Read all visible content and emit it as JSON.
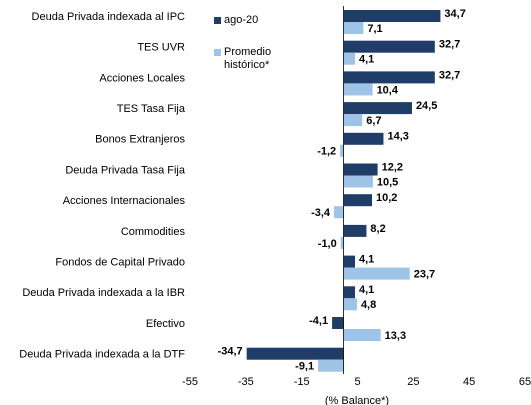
{
  "chart_data": {
    "type": "hbar",
    "categories": [
      "Deuda Privada indexada al IPC",
      "TES UVR",
      "Acciones Locales",
      "TES Tasa Fija",
      "Bonos Extranjeros",
      "Deuda Privada Tasa Fija",
      "Acciones Internacionales",
      "Commodities",
      "Fondos de Capital Privado",
      "Deuda Privada indexada a la IBR",
      "Efectivo",
      "Deuda Privada indexada a la DTF"
    ],
    "series": [
      {
        "name": "ago-20",
        "color": "#1f3d66",
        "values": [
          34.7,
          32.7,
          32.7,
          24.5,
          14.3,
          12.2,
          10.2,
          8.2,
          4.1,
          4.1,
          -4.1,
          -34.7
        ],
        "value_labels": [
          "34,7",
          "32,7",
          "32,7",
          "24,5",
          "14,3",
          "12,2",
          "10,2",
          "8,2",
          "4,1",
          "4,1",
          "-4,1",
          "-34,7"
        ]
      },
      {
        "name": "Promedio histórico*",
        "color": "#9dc3e6",
        "values": [
          7.1,
          4.1,
          10.4,
          6.7,
          -1.2,
          10.5,
          -3.4,
          -1.0,
          23.7,
          4.8,
          13.3,
          -9.1
        ],
        "value_labels": [
          "7,1",
          "4,1",
          "10,4",
          "6,7",
          "-1,2",
          "10,5",
          "-3,4",
          "-1,0",
          "23,7",
          "4,8",
          "13,3",
          "-9,1"
        ]
      }
    ],
    "xlabel": "(% Balance*)",
    "xlim": [
      -55,
      65
    ],
    "xticks": [
      -55,
      -35,
      -15,
      5,
      25,
      45,
      65
    ],
    "grid": false
  }
}
